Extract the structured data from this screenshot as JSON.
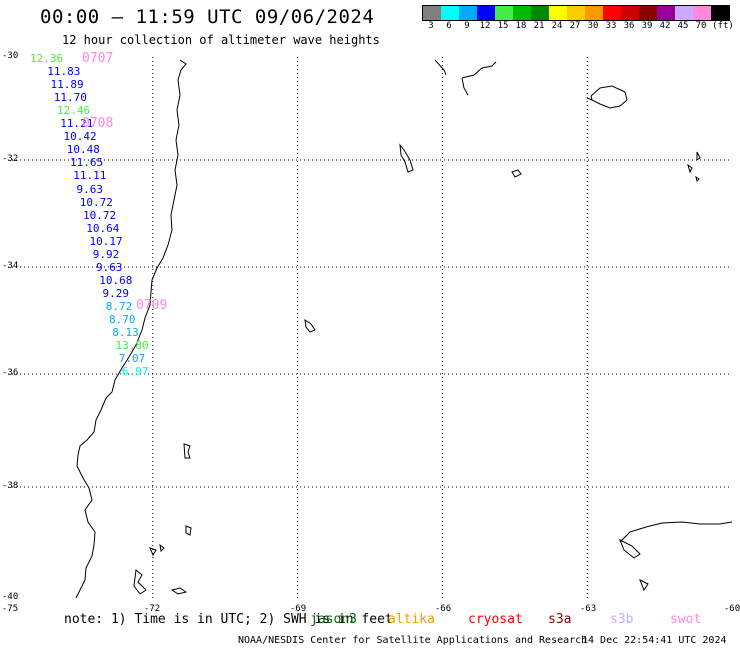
{
  "header": {
    "title": "00:00 – 11:59 UTC 09/06/2024",
    "subtitle": "12 hour collection of altimeter wave heights"
  },
  "legend": {
    "colors": [
      "#808080",
      "#00ffff",
      "#00aaff",
      "#0000ff",
      "#44ee44",
      "#00bb00",
      "#008800",
      "#ffff00",
      "#ffcc00",
      "#ff9900",
      "#ff0000",
      "#cc0000",
      "#880000",
      "#990099",
      "#ccaaff",
      "#ff88dd",
      "#000000"
    ],
    "labels": [
      "3",
      "6",
      "9",
      "12",
      "15",
      "18",
      "21",
      "24",
      "27",
      "30",
      "33",
      "36",
      "39",
      "42",
      "45",
      "70",
      "(ft)"
    ]
  },
  "axes": {
    "y_labels": [
      "-30",
      "-32",
      "-34",
      "-36",
      "-38",
      "-40"
    ],
    "x_labels": [
      "-75",
      "-72",
      "-69",
      "-66",
      "-63",
      "-60"
    ],
    "lat_range": [
      -40,
      -30
    ],
    "lon_range": [
      -75,
      -60
    ]
  },
  "map_data": {
    "time_labels": [
      {
        "text": "0707"
      },
      {
        "text": "0708"
      },
      {
        "text": "0709"
      }
    ],
    "wave_heights": [
      {
        "text": "12.36",
        "color": "#44ee44"
      },
      {
        "text": "11.83",
        "color": "#0000ff"
      },
      {
        "text": "11.89",
        "color": "#0000ff"
      },
      {
        "text": "11.70",
        "color": "#0000ff"
      },
      {
        "text": "12.46",
        "color": "#44ee44"
      },
      {
        "text": "11.21",
        "color": "#0000ff"
      },
      {
        "text": "10.42",
        "color": "#0000ff"
      },
      {
        "text": "10.48",
        "color": "#0000ff"
      },
      {
        "text": "11.65",
        "color": "#0000ff"
      },
      {
        "text": "11.11",
        "color": "#0000ff"
      },
      {
        "text": "9.63",
        "color": "#0000ff"
      },
      {
        "text": "10.72",
        "color": "#0000ff"
      },
      {
        "text": "10.72",
        "color": "#0000ff"
      },
      {
        "text": "10.64",
        "color": "#0000ff"
      },
      {
        "text": "10.17",
        "color": "#0000ff"
      },
      {
        "text": "9.92",
        "color": "#0000ff"
      },
      {
        "text": "9.63",
        "color": "#0000ff"
      },
      {
        "text": "10.68",
        "color": "#0000ff"
      },
      {
        "text": "9.29",
        "color": "#0000ff"
      },
      {
        "text": "8.72",
        "color": "#00aaff"
      },
      {
        "text": "8.70",
        "color": "#00aaff"
      },
      {
        "text": "8.13",
        "color": "#00aaff"
      },
      {
        "text": "13.80",
        "color": "#44ee44"
      },
      {
        "text": "7.07",
        "color": "#00aaff"
      },
      {
        "text": "6.97",
        "color": "#00ffff"
      }
    ]
  },
  "footer": {
    "note": "note: 1) Time is in UTC; 2) SWH is in feet",
    "satellites": [
      {
        "name": "jason3",
        "color": "#006600"
      },
      {
        "name": "altika",
        "color": "#ff9900"
      },
      {
        "name": "cryosat",
        "color": "#ff0000"
      },
      {
        "name": "s3a",
        "color": "#880000"
      },
      {
        "name": "s3b",
        "color": "#ccaaff"
      },
      {
        "name": "swot",
        "color": "#ff88dd"
      }
    ],
    "credit": "NOAA/NESDIS Center for Satellite Applications and Research",
    "timestamp": "14 Dec 22:54:41 UTC 2024"
  }
}
